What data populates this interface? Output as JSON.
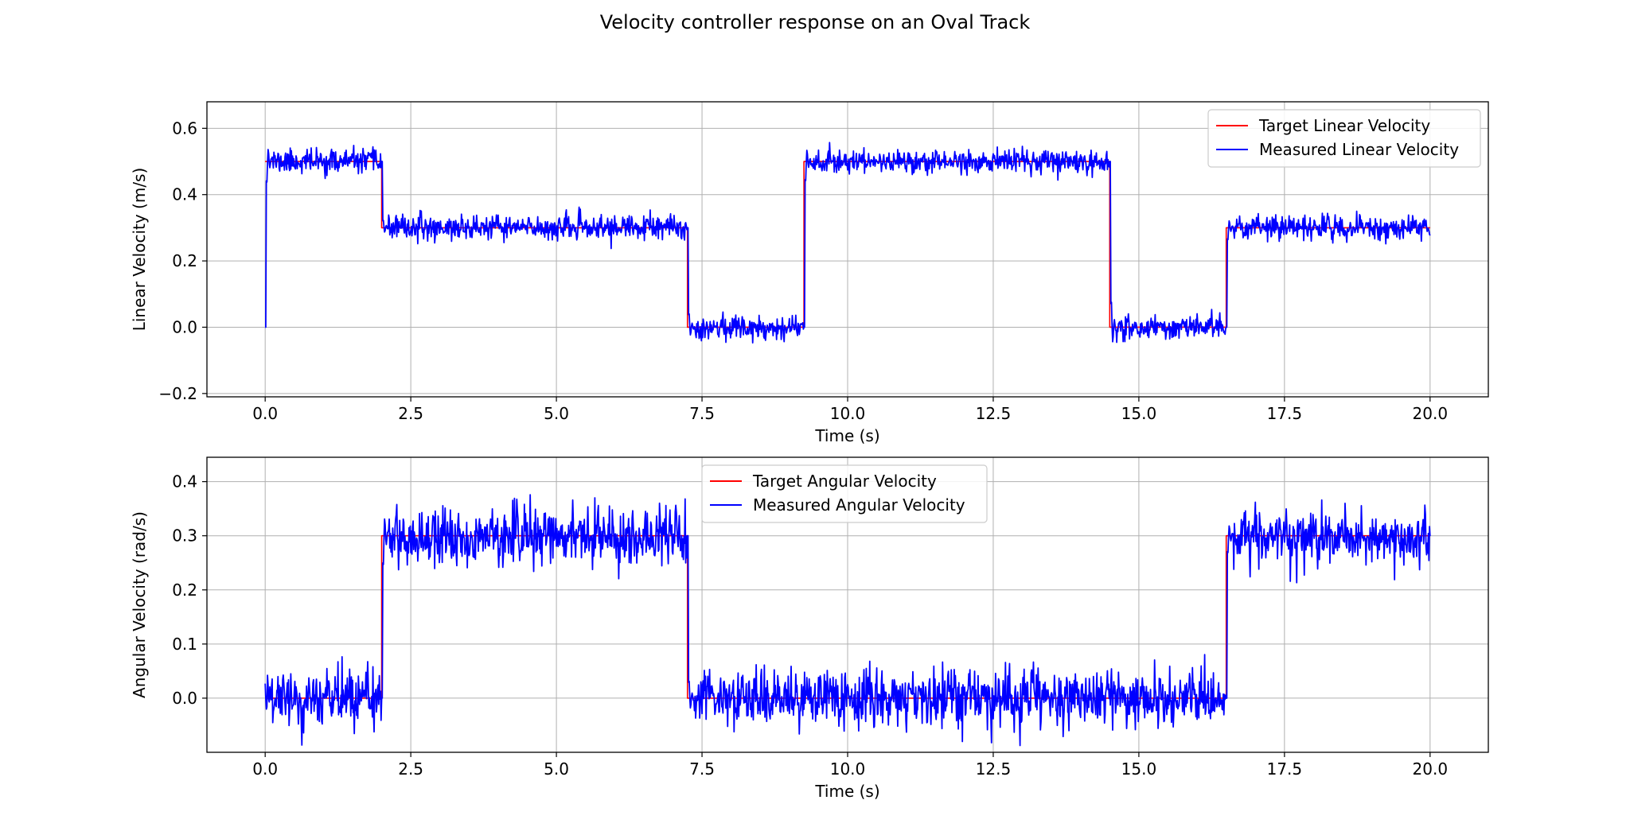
{
  "figure": {
    "title": "Velocity controller response on an Oval Track"
  },
  "chart_data": [
    {
      "type": "line",
      "xlabel": "Time (s)",
      "ylabel": "Linear Velocity (m/s)",
      "xlim": [
        -1.0,
        21.0
      ],
      "ylim": [
        -0.21,
        0.68
      ],
      "xticks": [
        0.0,
        2.5,
        5.0,
        7.5,
        10.0,
        12.5,
        15.0,
        17.5,
        20.0
      ],
      "xtick_labels": [
        "0.0",
        "2.5",
        "5.0",
        "7.5",
        "10.0",
        "12.5",
        "15.0",
        "17.5",
        "20.0"
      ],
      "yticks": [
        -0.2,
        0.0,
        0.2,
        0.4,
        0.6
      ],
      "ytick_labels": [
        "−0.2",
        "0.0",
        "0.2",
        "0.4",
        "0.6"
      ],
      "grid": true,
      "legend_position": "top-right",
      "series": [
        {
          "name": "Target Linear Velocity",
          "color": "#ff0000",
          "style": "step",
          "segments": [
            {
              "x0": 0.0,
              "x1": 2.0,
              "y": 0.5
            },
            {
              "x0": 2.0,
              "x1": 7.25,
              "y": 0.3
            },
            {
              "x0": 7.25,
              "x1": 9.25,
              "y": 0.0
            },
            {
              "x0": 9.25,
              "x1": 14.5,
              "y": 0.5
            },
            {
              "x0": 14.5,
              "x1": 16.5,
              "y": 0.0
            },
            {
              "x0": 16.5,
              "x1": 20.0,
              "y": 0.3
            }
          ]
        },
        {
          "name": "Measured Linear Velocity",
          "color": "#0000ff",
          "style": "noisy",
          "noise_std": 0.018,
          "noise_seed": 11,
          "transients": [
            {
              "t": 0.0,
              "from": 0.0,
              "peak": 0.64
            },
            {
              "t": 2.0,
              "from": 0.5,
              "peak": 0.25
            },
            {
              "t": 7.25,
              "from": 0.3,
              "peak": -0.09
            },
            {
              "t": 9.25,
              "from": 0.0,
              "peak": 0.63
            },
            {
              "t": 14.5,
              "from": 0.5,
              "peak": -0.17
            },
            {
              "t": 16.5,
              "from": 0.0,
              "peak": 0.38
            }
          ]
        }
      ]
    },
    {
      "type": "line",
      "xlabel": "Time (s)",
      "ylabel": "Angular Velocity (rad/s)",
      "xlim": [
        -1.0,
        21.0
      ],
      "ylim": [
        -0.1,
        0.445
      ],
      "xticks": [
        0.0,
        2.5,
        5.0,
        7.5,
        10.0,
        12.5,
        15.0,
        17.5,
        20.0
      ],
      "xtick_labels": [
        "0.0",
        "2.5",
        "5.0",
        "7.5",
        "10.0",
        "12.5",
        "15.0",
        "17.5",
        "20.0"
      ],
      "yticks": [
        0.0,
        0.1,
        0.2,
        0.3,
        0.4
      ],
      "ytick_labels": [
        "0.0",
        "0.1",
        "0.2",
        "0.3",
        "0.4"
      ],
      "grid": true,
      "legend_position": "top-center",
      "series": [
        {
          "name": "Target Angular Velocity",
          "color": "#ff0000",
          "style": "step",
          "segments": [
            {
              "x0": 0.0,
              "x1": 2.0,
              "y": 0.0
            },
            {
              "x0": 2.0,
              "x1": 7.25,
              "y": 0.3
            },
            {
              "x0": 7.25,
              "x1": 16.5,
              "y": 0.0
            },
            {
              "x0": 16.5,
              "x1": 20.0,
              "y": 0.3
            }
          ]
        },
        {
          "name": "Measured Angular Velocity",
          "color": "#0000ff",
          "style": "noisy",
          "noise_std": 0.026,
          "noise_seed": 29,
          "transients": [
            {
              "t": 2.0,
              "from": 0.0,
              "peak": 0.42
            },
            {
              "t": 7.25,
              "from": 0.3,
              "peak": -0.07
            },
            {
              "t": 16.5,
              "from": 0.0,
              "peak": 0.37
            }
          ]
        }
      ]
    }
  ]
}
